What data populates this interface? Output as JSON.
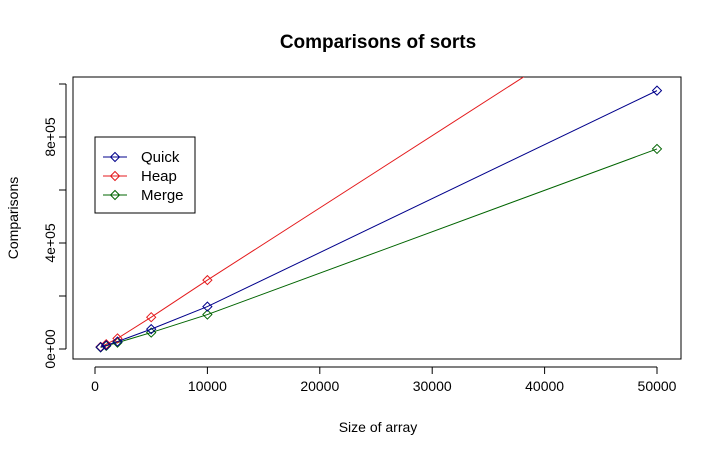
{
  "chart_data": {
    "type": "line",
    "title": "Comparisons of sorts",
    "xlabel": "Size of array",
    "ylabel": "Comparisons",
    "xlim": [
      0,
      50000
    ],
    "ylim": [
      0,
      1000000
    ],
    "x_ticks": [
      0,
      10000,
      20000,
      30000,
      40000,
      50000
    ],
    "x_tick_labels": [
      "0",
      "10000",
      "20000",
      "30000",
      "40000",
      "50000"
    ],
    "y_ticks": [
      0,
      400000,
      800000
    ],
    "y_tick_labels": [
      "0e+00",
      "4e+05",
      "8e+05"
    ],
    "grid": false,
    "legend_position": "top-left",
    "marker": "diamond",
    "series": [
      {
        "name": "Quick",
        "color": "#00008B",
        "x": [
          500,
          1000,
          2000,
          5000,
          10000,
          50000
        ],
        "y": [
          7000,
          14000,
          28000,
          75000,
          160000,
          975000
        ]
      },
      {
        "name": "Heap",
        "color": "#E41A1C",
        "x": [
          500,
          1000,
          2000,
          5000,
          10000,
          50000
        ],
        "y": [
          8000,
          18000,
          40000,
          120000,
          260000,
          1350000
        ]
      },
      {
        "name": "Merge",
        "color": "#006400",
        "x": [
          500,
          1000,
          2000,
          5000,
          10000,
          50000
        ],
        "y": [
          6000,
          12000,
          24000,
          62000,
          130000,
          755000
        ]
      }
    ]
  }
}
